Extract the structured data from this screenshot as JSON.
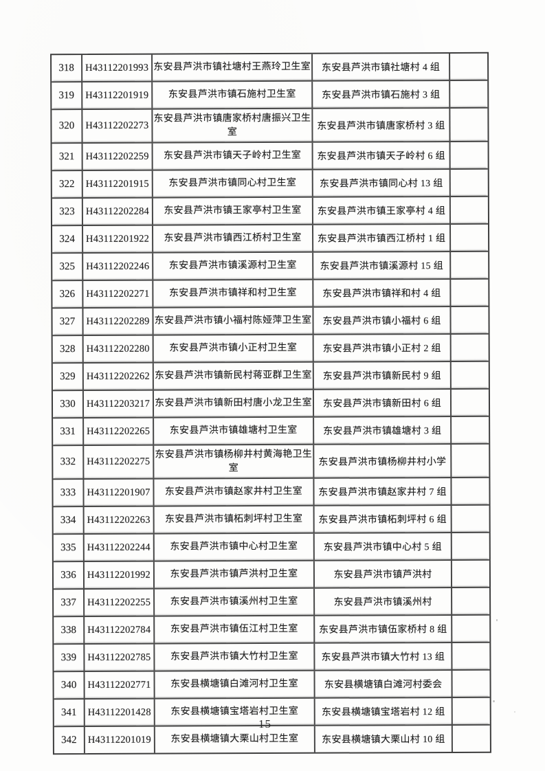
{
  "document": {
    "page_number": "15"
  },
  "table": {
    "rows": [
      {
        "no": "318",
        "code": "H43112201993",
        "name": "东安县芦洪市镇社塘村王燕玲卫生室",
        "address": "东安县芦洪市镇社塘村 4 组"
      },
      {
        "no": "319",
        "code": "H43112201919",
        "name": "东安县芦洪市镇石施村卫生室",
        "address": "东安县芦洪市镇石施村 3 组"
      },
      {
        "no": "320",
        "code": "H43112202273",
        "name": "东安县芦洪市镇唐家桥村唐振兴卫生室",
        "address": "东安县芦洪市镇唐家桥村 3 组"
      },
      {
        "no": "321",
        "code": "H43112202259",
        "name": "东安县芦洪市镇天子岭村卫生室",
        "address": "东安县芦洪市镇天子岭村 6 组"
      },
      {
        "no": "322",
        "code": "H43112201915",
        "name": "东安县芦洪市镇同心村卫生室",
        "address": "东安县芦洪市镇同心村 13 组"
      },
      {
        "no": "323",
        "code": "H43112202284",
        "name": "东安县芦洪市镇王家亭村卫生室",
        "address": "东安县芦洪市镇王家亭村 4 组"
      },
      {
        "no": "324",
        "code": "H43112201922",
        "name": "东安县芦洪市镇西江桥村卫生室",
        "address": "东安县芦洪市镇西江桥村 1 组"
      },
      {
        "no": "325",
        "code": "H43112202246",
        "name": "东安县芦洪市镇溪源村卫生室",
        "address": "东安县芦洪市镇溪源村 15 组"
      },
      {
        "no": "326",
        "code": "H43112202271",
        "name": "东安县芦洪市镇祥和村卫生室",
        "address": "东安县芦洪市镇祥和村 4 组"
      },
      {
        "no": "327",
        "code": "H43112202289",
        "name": "东安县芦洪市镇小福村陈娅萍卫生室",
        "address": "东安县芦洪市镇小福村 6 组"
      },
      {
        "no": "328",
        "code": "H43112202280",
        "name": "东安县芦洪市镇小正村卫生室",
        "address": "东安县芦洪市镇小正村 2 组"
      },
      {
        "no": "329",
        "code": "H43112202262",
        "name": "东安县芦洪市镇新民村蒋亚群卫生室",
        "address": "东安县芦洪市镇新民村 9 组"
      },
      {
        "no": "330",
        "code": "H43112203217",
        "name": "东安县芦洪市镇新田村唐小龙卫生室",
        "address": "东安县芦洪市镇新田村 6 组"
      },
      {
        "no": "331",
        "code": "H43112202265",
        "name": "东安县芦洪市镇雄塘村卫生室",
        "address": "东安县芦洪市镇雄塘村 3 组"
      },
      {
        "no": "332",
        "code": "H43112202275",
        "name": "东安县芦洪市镇杨柳井村黄海艳卫生室",
        "address": "东安县芦洪市镇杨柳井村小学"
      },
      {
        "no": "333",
        "code": "H43112201907",
        "name": "东安县芦洪市镇赵家井村卫生室",
        "address": "东安县芦洪市镇赵家井村 7 组"
      },
      {
        "no": "334",
        "code": "H43112202263",
        "name": "东安县芦洪市镇柘刺坪村卫生室",
        "address": "东安县芦洪市镇柘刺坪村 6 组"
      },
      {
        "no": "335",
        "code": "H43112202244",
        "name": "东安县芦洪市镇中心村卫生室",
        "address": "东安县芦洪市镇中心村 5 组"
      },
      {
        "no": "336",
        "code": "H43112201992",
        "name": "东安县芦洪市镇芦洪村卫生室",
        "address": "东安县芦洪市镇芦洪村"
      },
      {
        "no": "337",
        "code": "H43112202255",
        "name": "东安县芦洪市镇溪州村卫生室",
        "address": "东安县芦洪市镇溪州村"
      },
      {
        "no": "338",
        "code": "H43112202784",
        "name": "东安县芦洪市镇伍江村卫生室",
        "address": "东安县芦洪市镇伍家桥村 8 组"
      },
      {
        "no": "339",
        "code": "H43112202785",
        "name": "东安县芦洪市镇大竹村卫生室",
        "address": "东安县芦洪市镇大竹村 13 组"
      },
      {
        "no": "340",
        "code": "H43112202771",
        "name": "东安县横塘镇白滩河村卫生室",
        "address": "东安县横塘镇白滩河村委会"
      },
      {
        "no": "341",
        "code": "H43112201428",
        "name": "东安县横塘镇宝塔岩村卫生室",
        "address": "东安县横塘镇宝塔岩村 12 组"
      },
      {
        "no": "342",
        "code": "H43112201019",
        "name": "东安县横塘镇大栗山村卫生室",
        "address": "东安县横塘镇大栗山村 10 组"
      }
    ]
  }
}
